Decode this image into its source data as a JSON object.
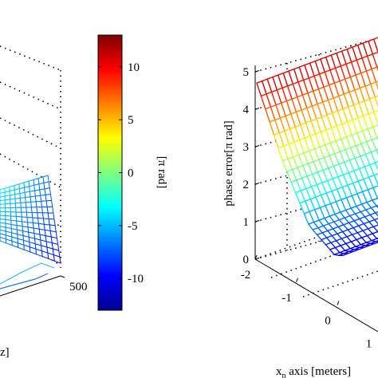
{
  "chart_data": [
    {
      "type": "surface",
      "panel": "left",
      "xlabel_fragment": "z]",
      "x_tick_labels": [
        "500"
      ],
      "colormap": "jet",
      "mesh_color_range_pi_rad": [
        -5,
        0
      ],
      "grid": true
    },
    {
      "type": "colorbar",
      "label": "[π rad]",
      "colormap": "jet",
      "range": [
        -13,
        13
      ],
      "ticks": [
        10,
        5,
        0,
        -5,
        -10
      ],
      "tick_labels": [
        "10",
        "5",
        "0",
        "-5",
        "-10"
      ]
    },
    {
      "type": "surface",
      "panel": "right",
      "zlabel": "phase error[π rad]",
      "xlabel": "x",
      "xlabel_sub": "n",
      "xlabel_rest": " axis [meters]",
      "z_ticks": [
        "5",
        "4",
        "3",
        "2",
        "1",
        "0"
      ],
      "x_ticks": [
        "-2",
        "-1",
        "0",
        "1"
      ],
      "zlim": [
        0,
        5
      ],
      "xlim": [
        -2,
        2
      ],
      "surface_z_at_x": [
        {
          "x": -2,
          "z": 4.7
        },
        {
          "x": -1,
          "z": 2.6
        },
        {
          "x": 0,
          "z": 0.9
        },
        {
          "x": 1,
          "z": 0.1
        }
      ],
      "colormap": "jet",
      "grid": true
    }
  ]
}
